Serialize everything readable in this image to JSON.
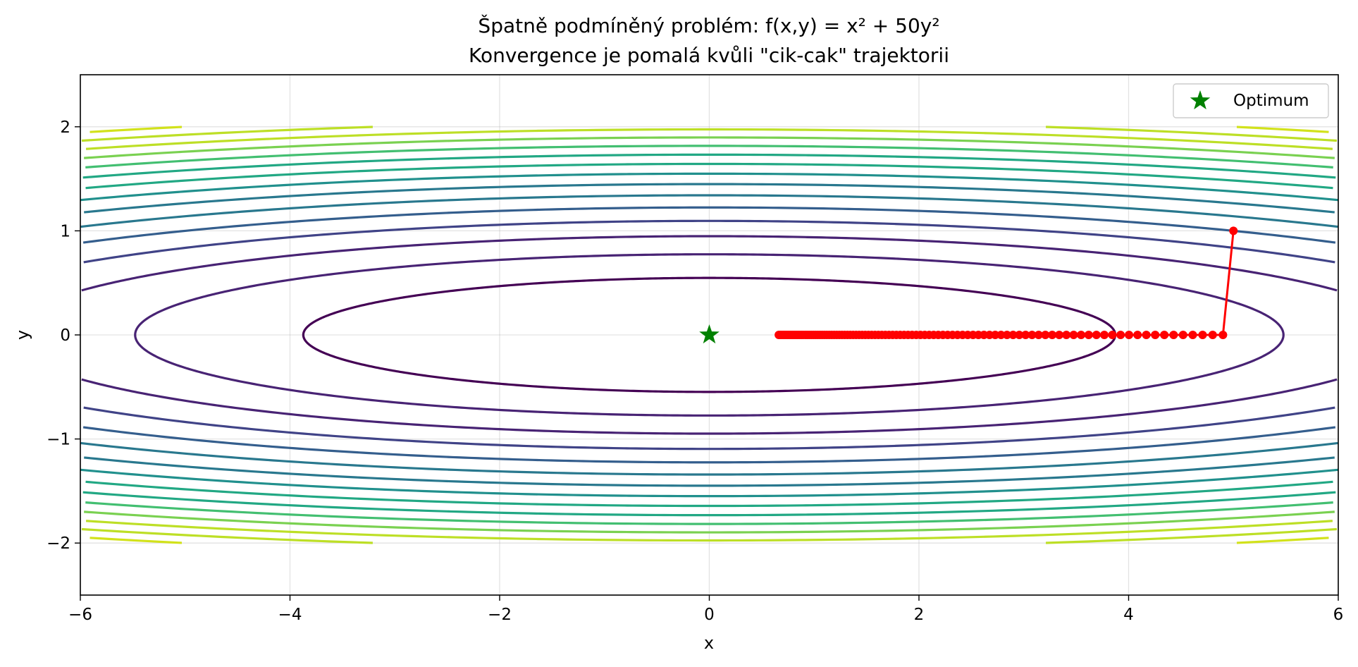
{
  "chart_data": {
    "type": "line",
    "title": "Špatně podmíněný problém: f(x,y) = x² + 50y²",
    "subtitle": "Konvergence je pomalá kvůli \"cik-cak\" trajektorii",
    "xlabel": "x",
    "ylabel": "y",
    "xlim": [
      -6,
      6
    ],
    "ylim": [
      -2.5,
      2.5
    ],
    "xticks": [
      -6,
      -4,
      -2,
      0,
      2,
      4,
      6
    ],
    "yticks": [
      -2,
      -1,
      0,
      1,
      2
    ],
    "xtick_labels": [
      "−6",
      "−4",
      "−2",
      "0",
      "2",
      "4",
      "6"
    ],
    "ytick_labels": [
      "−2",
      "−1",
      "0",
      "1",
      "2"
    ],
    "grid": true,
    "legend": {
      "placement": "top-right",
      "entries": [
        {
          "label": "Optimum"
        }
      ]
    },
    "contour": {
      "function": "x^2 + 50y^2",
      "levels": [
        15,
        30,
        45,
        60,
        75,
        90,
        105,
        120,
        135,
        150,
        165,
        180,
        195,
        210,
        225
      ],
      "level_colors": [
        "#440154",
        "#482374",
        "#404387",
        "#345e8d",
        "#29788e",
        "#21908d",
        "#22a884",
        "#43bf71",
        "#7ad151",
        "#bddf26",
        "#d2e21b"
      ],
      "domain": {
        "x": [
          -6,
          6
        ],
        "y": [
          -2,
          2
        ]
      }
    },
    "optimum": {
      "name": "Optimum",
      "x": 0,
      "y": 0,
      "color": "#008000"
    },
    "trajectory": {
      "color": "#ff0000",
      "start": {
        "x": 5.0,
        "y": 1.0
      },
      "step_factor_x": 0.98,
      "steps": 100
    }
  }
}
